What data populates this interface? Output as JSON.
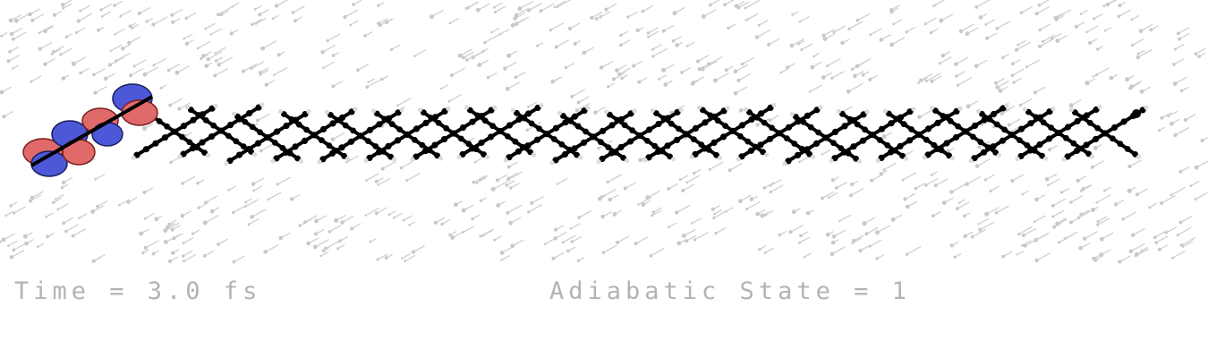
{
  "overlay": {
    "time_label": "Time = 3.0 fs",
    "state_label": "Adiabatic State = 1"
  },
  "colors": {
    "background": "#ffffff",
    "matrix_atoms": "#c8c8c8",
    "stack_atoms": "#000000",
    "hydrogen": "#e6e6e6",
    "orbital_positive": "#5a64e0",
    "orbital_negative": "#e06a6a",
    "overlay_text": "#b3b3b3"
  },
  "scene": {
    "description_elements": [
      "matrix-region-top",
      "matrix-region-bottom",
      "molecular-stack",
      "orbital-isosurface"
    ]
  }
}
